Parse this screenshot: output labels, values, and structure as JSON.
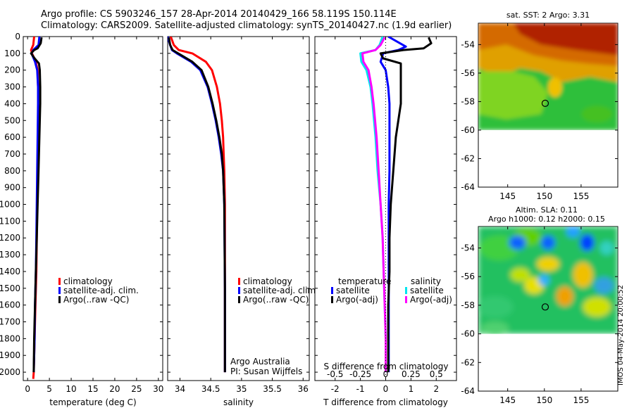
{
  "header": {
    "line1": "Argo profile: CS 5903246_157 28-Apr-2014 20140429_166 58.119S 150.114E",
    "line2": "Climatology: CARS2009. Satellite-adjusted climatology: synTS_20140427.nc (1.9d earlier)"
  },
  "stamp": "IMOS 04-May-2014 20:00:52",
  "colors": {
    "climatology": "#ff0000",
    "satellite": "#0000ff",
    "argo": "#000000",
    "s_satellite": "#00e5ee",
    "s_argo": "#ff00ff"
  },
  "chart_data": [
    {
      "type": "line",
      "name": "temperature-profile",
      "xlabel": "temperature (deg C)",
      "ylabel": "",
      "xlim": [
        -1,
        31
      ],
      "ylim": [
        2050,
        0
      ],
      "xticks": [
        0,
        5,
        10,
        15,
        20,
        25,
        30
      ],
      "yticks": [
        0,
        100,
        200,
        300,
        400,
        500,
        600,
        700,
        800,
        900,
        1000,
        1100,
        1200,
        1300,
        1400,
        1500,
        1600,
        1700,
        1800,
        1900,
        2000
      ],
      "legend": [
        "climatology",
        "satellite-adj. clim.",
        "Argo(..raw -QC)"
      ],
      "series": [
        {
          "name": "climatology",
          "color": "#ff0000",
          "y": [
            0,
            50,
            80,
            100,
            150,
            200,
            300,
            400,
            600,
            800,
            1000,
            1200,
            1400,
            1600,
            1800,
            2000,
            2040
          ],
          "x": [
            1.5,
            1.3,
            0.8,
            1.0,
            1.9,
            2.3,
            2.4,
            2.4,
            2.4,
            2.3,
            2.2,
            2.1,
            2.0,
            1.8,
            1.6,
            1.4,
            1.3
          ]
        },
        {
          "name": "satellite-adj. clim.",
          "color": "#0000ff",
          "y": [
            0,
            50,
            80,
            100,
            150,
            200,
            300,
            400,
            600,
            800,
            1000,
            1200,
            1400,
            1600,
            1800,
            2000
          ],
          "x": [
            2.7,
            2.5,
            1.3,
            0.9,
            1.7,
            2.2,
            2.4,
            2.4,
            2.3,
            2.2,
            2.1,
            2.0,
            1.9,
            1.7,
            1.6,
            1.4
          ]
        },
        {
          "name": "Argo(..raw -QC)",
          "color": "#000000",
          "y": [
            5,
            40,
            70,
            80,
            100,
            130,
            160,
            200,
            300,
            400,
            600,
            800,
            1000,
            1200,
            1400,
            1600,
            1800,
            2000
          ],
          "x": [
            3.2,
            3.0,
            2.3,
            1.5,
            0.8,
            1.6,
            2.6,
            2.8,
            2.9,
            2.9,
            2.7,
            2.5,
            2.3,
            2.1,
            1.9,
            1.7,
            1.5,
            1.4
          ]
        }
      ]
    },
    {
      "type": "line",
      "name": "salinity-profile",
      "xlabel": "salinity",
      "ylabel": "",
      "xlim": [
        33.8,
        36.1
      ],
      "ylim": [
        2050,
        0
      ],
      "xticks": [
        34,
        34.5,
        35,
        35.5,
        36
      ],
      "annotations": [
        "Argo Australia",
        "PI: Susan Wijffels"
      ],
      "legend": [
        "climatology",
        "satellite-adj. clim.",
        "Argo(..raw -QC)"
      ],
      "series": [
        {
          "name": "climatology",
          "color": "#ff0000",
          "y": [
            0,
            50,
            80,
            100,
            150,
            200,
            300,
            400,
            500,
            600,
            700,
            800,
            1000,
            1500,
            2000
          ],
          "x": [
            33.85,
            33.9,
            33.98,
            34.2,
            34.42,
            34.52,
            34.6,
            34.65,
            34.68,
            34.7,
            34.71,
            34.72,
            34.73,
            34.73,
            34.73
          ]
        },
        {
          "name": "satellite-adj. clim.",
          "color": "#0000ff",
          "y": [
            0,
            50,
            80,
            100,
            150,
            200,
            300,
            400,
            500,
            600,
            700,
            800,
            1000,
            1500,
            2000
          ],
          "x": [
            33.8,
            33.84,
            33.87,
            33.95,
            34.18,
            34.33,
            34.45,
            34.52,
            34.58,
            34.63,
            34.67,
            34.7,
            34.72,
            34.73,
            34.73
          ]
        },
        {
          "name": "Argo(..raw -QC)",
          "color": "#000000",
          "y": [
            5,
            50,
            80,
            100,
            150,
            200,
            300,
            400,
            500,
            600,
            700,
            800,
            1000,
            1500,
            2000
          ],
          "x": [
            33.82,
            33.84,
            33.88,
            33.97,
            34.2,
            34.35,
            34.46,
            34.53,
            34.59,
            34.64,
            34.68,
            34.7,
            34.72,
            34.73,
            34.73
          ]
        }
      ]
    },
    {
      "type": "line",
      "name": "difference-profile",
      "xlabel": "T difference from climatology",
      "xlabel_top": "S difference from climatology",
      "ylabel": "",
      "xlim": [
        -2.8,
        2.8
      ],
      "xticks": [
        -2,
        -1,
        0,
        1,
        2
      ],
      "xticks_s": [
        -0.5,
        -0.25,
        0,
        0.25,
        0.5
      ],
      "ylim": [
        2050,
        0
      ],
      "legend_left": {
        "title": "temperature",
        "items": [
          "satellite",
          "Argo(-adj)"
        ]
      },
      "legend_right": {
        "title": "salinity",
        "items": [
          "satellite",
          "Argo(-adj)"
        ]
      },
      "series": [
        {
          "name": "satellite",
          "group": "temperature",
          "color": "#0000ff",
          "y": [
            0,
            60,
            80,
            100,
            150,
            200,
            300,
            400,
            600,
            800,
            1000,
            1200,
            1400,
            1600,
            1800,
            2000
          ],
          "x": [
            0.1,
            0.8,
            0.5,
            -0.1,
            -0.2,
            0.0,
            0.1,
            0.15,
            0.15,
            0.15,
            0.12,
            0.12,
            0.12,
            0.12,
            0.12,
            0.12
          ]
        },
        {
          "name": "Argo(-adj)",
          "group": "temperature",
          "color": "#000000",
          "y": [
            5,
            40,
            70,
            80,
            100,
            130,
            160,
            200,
            300,
            400,
            600,
            800,
            1000,
            1200,
            1400,
            1600,
            1800,
            2000
          ],
          "x": [
            1.7,
            1.8,
            1.5,
            0.7,
            -0.2,
            -0.1,
            0.6,
            0.6,
            0.6,
            0.6,
            0.4,
            0.3,
            0.2,
            0.15,
            0.15,
            0.1,
            0.1,
            0.1
          ]
        },
        {
          "name": "satellite",
          "group": "salinity",
          "color": "#00e5ee",
          "y": [
            0,
            50,
            80,
            100,
            150,
            200,
            300,
            400,
            600,
            800,
            1000,
            1200,
            1400,
            1600,
            1800,
            2000
          ],
          "x": [
            -0.03,
            -0.06,
            -0.1,
            -0.25,
            -0.24,
            -0.19,
            -0.15,
            -0.13,
            -0.1,
            -0.08,
            -0.05,
            -0.03,
            -0.02,
            -0.01,
            0.0,
            0.0
          ]
        },
        {
          "name": "Argo(-adj)",
          "group": "salinity",
          "color": "#ff00ff",
          "y": [
            5,
            50,
            80,
            100,
            150,
            200,
            300,
            400,
            600,
            800,
            1000,
            1200,
            1400,
            1600,
            1800,
            2000
          ],
          "x": [
            -0.01,
            -0.05,
            -0.1,
            -0.23,
            -0.22,
            -0.17,
            -0.14,
            -0.12,
            -0.09,
            -0.07,
            -0.05,
            -0.03,
            -0.02,
            -0.01,
            0.0,
            0.0
          ]
        }
      ]
    },
    {
      "type": "heatmap",
      "name": "sst-map",
      "title": "sat. SST: 2 Argo: 3.31",
      "xlim": [
        141,
        160
      ],
      "ylim": [
        -64,
        -52.5
      ],
      "xticks": [
        145,
        150,
        155
      ],
      "yticks": [
        -54,
        -56,
        -58,
        -60,
        -62,
        -64
      ],
      "data_ylim": [
        -60,
        -52.5
      ],
      "marker": {
        "lon": 150.114,
        "lat": -58.119
      }
    },
    {
      "type": "heatmap",
      "name": "sla-map",
      "title": "Altim. SLA: 0.11",
      "subtitle": "Argo h1000: 0.12 h2000: 0.15",
      "xlim": [
        141,
        160
      ],
      "ylim": [
        -64,
        -52.5
      ],
      "xticks": [
        145,
        150,
        155
      ],
      "yticks": [
        -54,
        -56,
        -58,
        -60,
        -62,
        -64
      ],
      "data_ylim": [
        -60,
        -52.5
      ],
      "marker": {
        "lon": 150.114,
        "lat": -58.119
      }
    }
  ]
}
